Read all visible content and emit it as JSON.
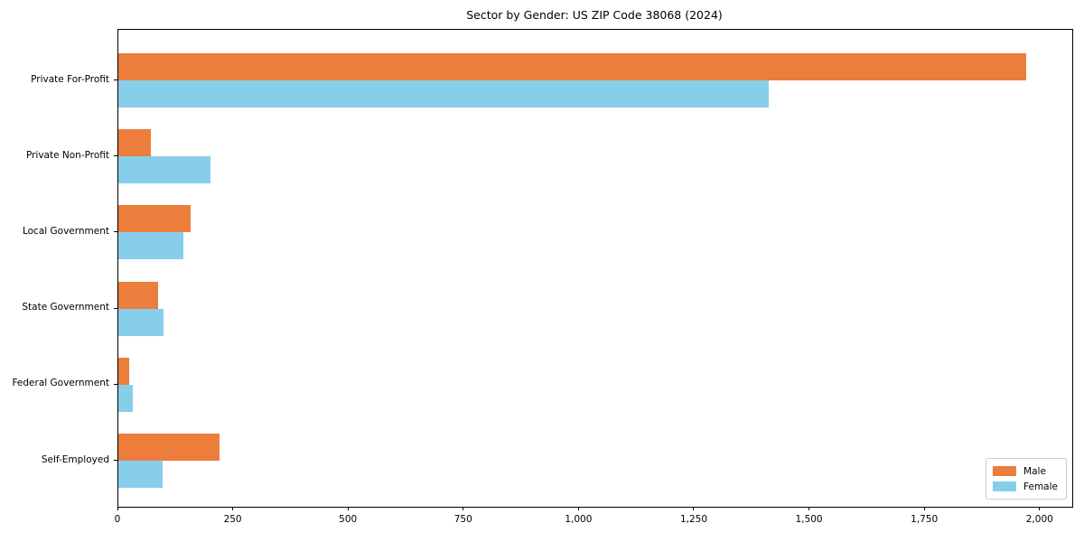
{
  "chart_data": {
    "type": "bar",
    "orientation": "horizontal",
    "title": "Sector by Gender: US ZIP Code 38068 (2024)",
    "categories": [
      "Private For-Profit",
      "Private Non-Profit",
      "Local Government",
      "State Government",
      "Federal Government",
      "Self-Employed"
    ],
    "series": [
      {
        "name": "Male",
        "color": "#ED7D3C",
        "values": [
          1970,
          70,
          157,
          86,
          23,
          220
        ]
      },
      {
        "name": "Female",
        "color": "#87CEEB",
        "values": [
          1410,
          200,
          141,
          98,
          32,
          96
        ]
      }
    ],
    "xlabel": "",
    "ylabel": "",
    "xlim": [
      0,
      2069
    ],
    "xticks": [
      0,
      250,
      500,
      750,
      1000,
      1250,
      1500,
      1750,
      2000
    ],
    "xtick_labels": [
      "0",
      "250",
      "500",
      "750",
      "1,000",
      "1,250",
      "1,500",
      "1,750",
      "2,000"
    ],
    "grid": false,
    "legend_position": "lower right",
    "colors": {
      "axis": "#000000",
      "legend_border": "#cccccc",
      "background": "#ffffff"
    }
  }
}
